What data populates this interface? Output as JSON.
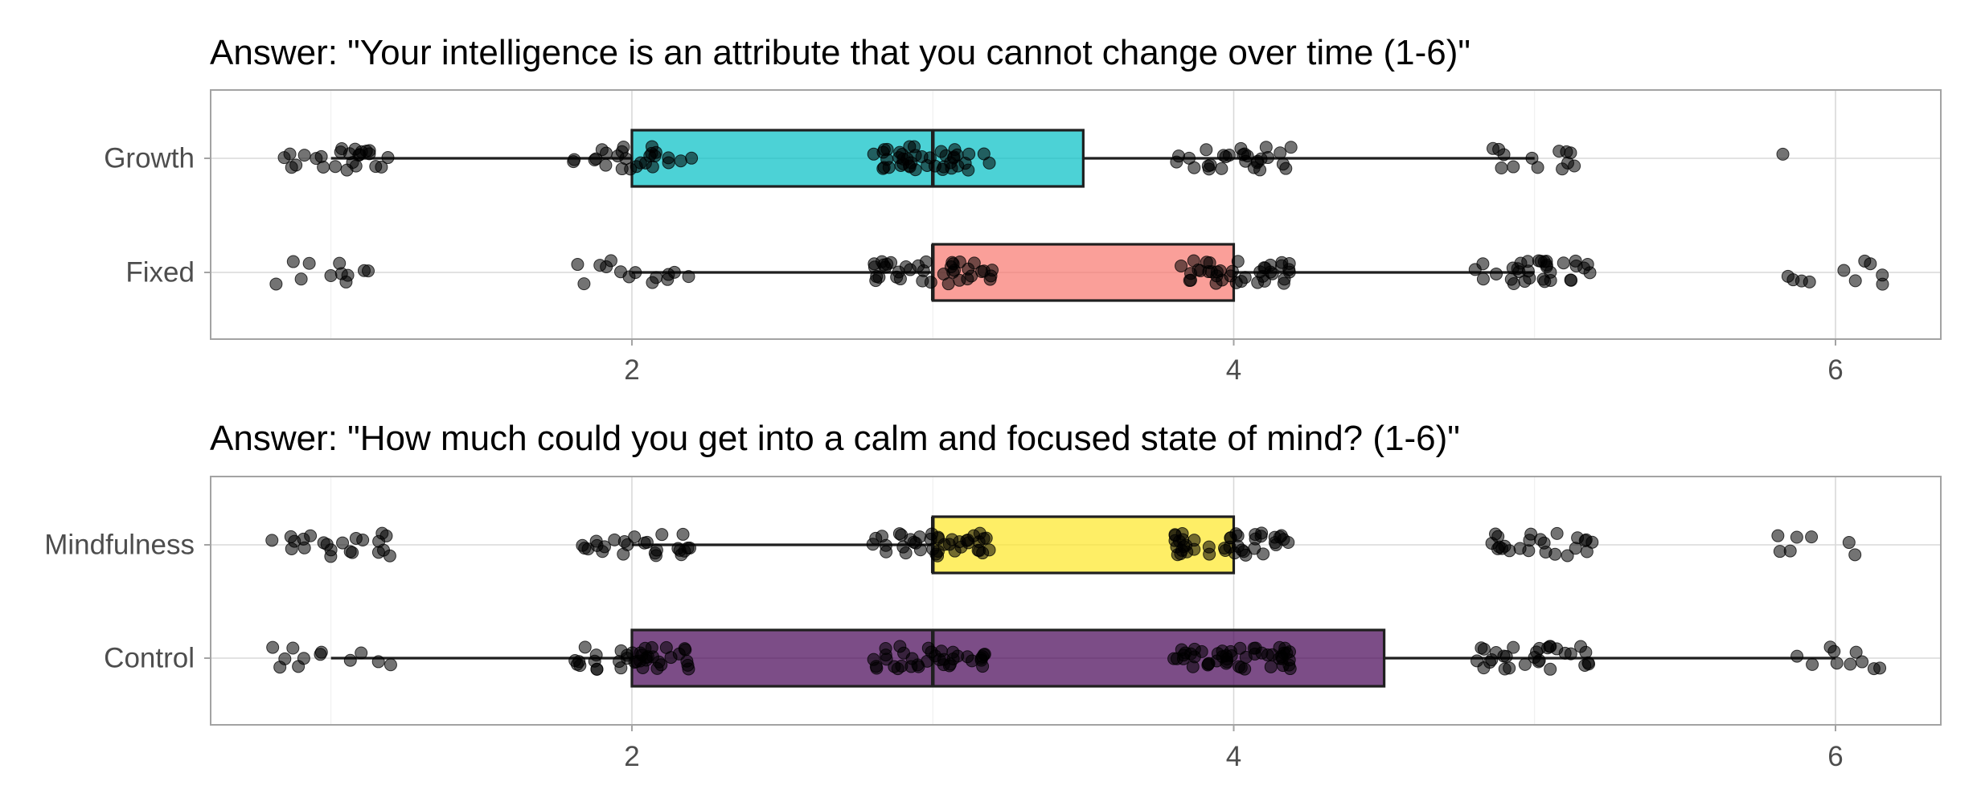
{
  "chart_data": [
    {
      "type": "box",
      "title": "Answer: \"Your intelligence is an attribute that you cannot change over time (1-6)\"",
      "xlabel": "",
      "ylabel": "",
      "xlim": [
        0.6,
        6.35
      ],
      "x_ticks": [
        2,
        4,
        6
      ],
      "grid": true,
      "legend": "none",
      "overlay": "jittered points (jitter width 0.2)",
      "groups": [
        {
          "category": "Growth",
          "color": "#00BFC4",
          "min": 1,
          "q1": 2,
          "median": 3,
          "q3": 3.5,
          "max": 5,
          "counts": {
            "1": 25,
            "2": 26,
            "3": 42,
            "4": 28,
            "5": 13,
            "6": 1
          }
        },
        {
          "category": "Fixed",
          "color": "#F8766D",
          "min": 2,
          "q1": 3,
          "median": 3,
          "q3": 4,
          "max": 5,
          "counts": {
            "1": 11,
            "2": 14,
            "3": 38,
            "4": 38,
            "5": 32,
            "6": 10
          }
        }
      ]
    },
    {
      "type": "box",
      "title": "Answer: \"How much could you get into a calm and focused state of mind? (1-6)\"",
      "xlabel": "",
      "ylabel": "",
      "xlim": [
        0.6,
        6.35
      ],
      "x_ticks": [
        2,
        4,
        6
      ],
      "grid": true,
      "legend": "none",
      "overlay": "jittered points (jitter width 0.2)",
      "groups": [
        {
          "category": "Mindfulness",
          "color": "#FDE725",
          "min": 2,
          "q1": 3,
          "median": 3,
          "q3": 4,
          "max": 4,
          "counts": {
            "1": 22,
            "2": 25,
            "3": 40,
            "4": 42,
            "5": 24,
            "6": 7
          }
        },
        {
          "category": "Control",
          "color": "#440154",
          "min": 1,
          "q1": 2,
          "median": 3,
          "q3": 4.5,
          "max": 6,
          "counts": {
            "1": 12,
            "2": 38,
            "3": 36,
            "4": 48,
            "5": 30,
            "6": 10
          }
        }
      ]
    }
  ]
}
